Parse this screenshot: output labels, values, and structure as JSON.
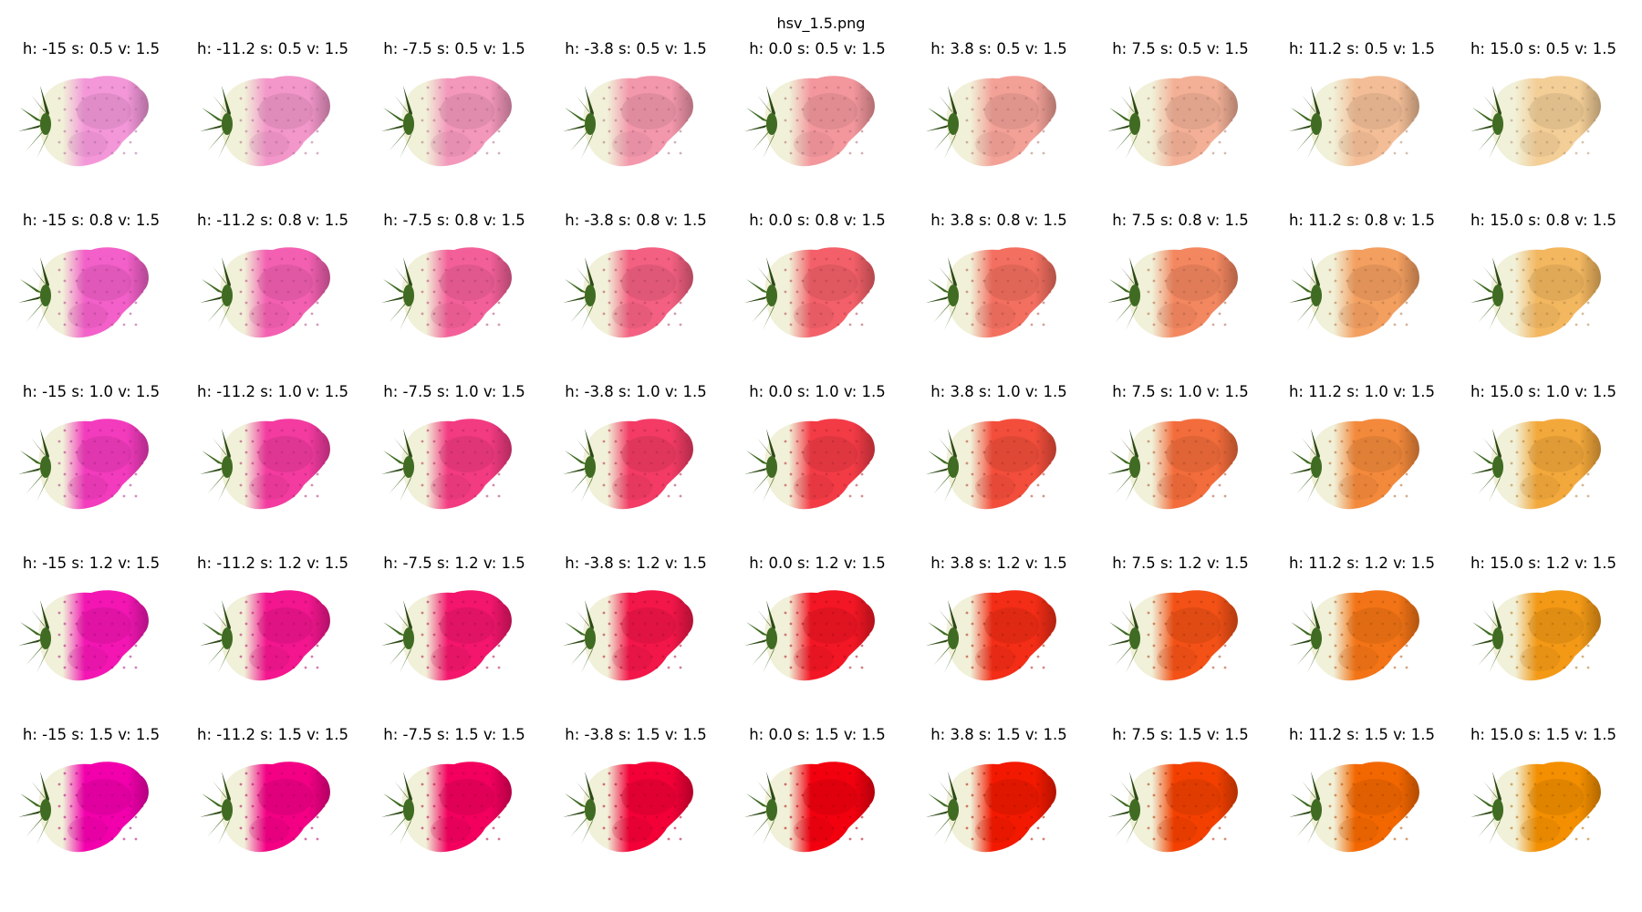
{
  "figure": {
    "title": "hsv_1.5.png",
    "rows": [
      [
        {
          "label": "h: -15 s: 0.5 v: 1.5",
          "h": -15,
          "s": 0.5,
          "v": 1.5
        },
        {
          "label": "h: -11.2 s: 0.5 v: 1.5",
          "h": -11.2,
          "s": 0.5,
          "v": 1.5
        },
        {
          "label": "h: -7.5 s: 0.5 v: 1.5",
          "h": -7.5,
          "s": 0.5,
          "v": 1.5
        },
        {
          "label": "h: -3.8 s: 0.5 v: 1.5",
          "h": -3.8,
          "s": 0.5,
          "v": 1.5
        },
        {
          "label": "h: 0.0 s: 0.5 v: 1.5",
          "h": 0.0,
          "s": 0.5,
          "v": 1.5
        },
        {
          "label": "h: 3.8 s: 0.5 v: 1.5",
          "h": 3.8,
          "s": 0.5,
          "v": 1.5
        },
        {
          "label": "h: 7.5 s: 0.5 v: 1.5",
          "h": 7.5,
          "s": 0.5,
          "v": 1.5
        },
        {
          "label": "h: 11.2 s: 0.5 v: 1.5",
          "h": 11.2,
          "s": 0.5,
          "v": 1.5
        },
        {
          "label": "h: 15.0 s: 0.5 v: 1.5",
          "h": 15.0,
          "s": 0.5,
          "v": 1.5
        }
      ],
      [
        {
          "label": "h: -15 s: 0.8 v: 1.5",
          "h": -15,
          "s": 0.8,
          "v": 1.5
        },
        {
          "label": "h: -11.2 s: 0.8 v: 1.5",
          "h": -11.2,
          "s": 0.8,
          "v": 1.5
        },
        {
          "label": "h: -7.5 s: 0.8 v: 1.5",
          "h": -7.5,
          "s": 0.8,
          "v": 1.5
        },
        {
          "label": "h: -3.8 s: 0.8 v: 1.5",
          "h": -3.8,
          "s": 0.8,
          "v": 1.5
        },
        {
          "label": "h: 0.0 s: 0.8 v: 1.5",
          "h": 0.0,
          "s": 0.8,
          "v": 1.5
        },
        {
          "label": "h: 3.8 s: 0.8 v: 1.5",
          "h": 3.8,
          "s": 0.8,
          "v": 1.5
        },
        {
          "label": "h: 7.5 s: 0.8 v: 1.5",
          "h": 7.5,
          "s": 0.8,
          "v": 1.5
        },
        {
          "label": "h: 11.2 s: 0.8 v: 1.5",
          "h": 11.2,
          "s": 0.8,
          "v": 1.5
        },
        {
          "label": "h: 15.0 s: 0.8 v: 1.5",
          "h": 15.0,
          "s": 0.8,
          "v": 1.5
        }
      ],
      [
        {
          "label": "h: -15 s: 1.0 v: 1.5",
          "h": -15,
          "s": 1.0,
          "v": 1.5
        },
        {
          "label": "h: -11.2 s: 1.0 v: 1.5",
          "h": -11.2,
          "s": 1.0,
          "v": 1.5
        },
        {
          "label": "h: -7.5 s: 1.0 v: 1.5",
          "h": -7.5,
          "s": 1.0,
          "v": 1.5
        },
        {
          "label": "h: -3.8 s: 1.0 v: 1.5",
          "h": -3.8,
          "s": 1.0,
          "v": 1.5
        },
        {
          "label": "h: 0.0 s: 1.0 v: 1.5",
          "h": 0.0,
          "s": 1.0,
          "v": 1.5
        },
        {
          "label": "h: 3.8 s: 1.0 v: 1.5",
          "h": 3.8,
          "s": 1.0,
          "v": 1.5
        },
        {
          "label": "h: 7.5 s: 1.0 v: 1.5",
          "h": 7.5,
          "s": 1.0,
          "v": 1.5
        },
        {
          "label": "h: 11.2 s: 1.0 v: 1.5",
          "h": 11.2,
          "s": 1.0,
          "v": 1.5
        },
        {
          "label": "h: 15.0 s: 1.0 v: 1.5",
          "h": 15.0,
          "s": 1.0,
          "v": 1.5
        }
      ],
      [
        {
          "label": "h: -15 s: 1.2 v: 1.5",
          "h": -15,
          "s": 1.2,
          "v": 1.5
        },
        {
          "label": "h: -11.2 s: 1.2 v: 1.5",
          "h": -11.2,
          "s": 1.2,
          "v": 1.5
        },
        {
          "label": "h: -7.5 s: 1.2 v: 1.5",
          "h": -7.5,
          "s": 1.2,
          "v": 1.5
        },
        {
          "label": "h: -3.8 s: 1.2 v: 1.5",
          "h": -3.8,
          "s": 1.2,
          "v": 1.5
        },
        {
          "label": "h: 0.0 s: 1.2 v: 1.5",
          "h": 0.0,
          "s": 1.2,
          "v": 1.5
        },
        {
          "label": "h: 3.8 s: 1.2 v: 1.5",
          "h": 3.8,
          "s": 1.2,
          "v": 1.5
        },
        {
          "label": "h: 7.5 s: 1.2 v: 1.5",
          "h": 7.5,
          "s": 1.2,
          "v": 1.5
        },
        {
          "label": "h: 11.2 s: 1.2 v: 1.5",
          "h": 11.2,
          "s": 1.2,
          "v": 1.5
        },
        {
          "label": "h: 15.0 s: 1.2 v: 1.5",
          "h": 15.0,
          "s": 1.2,
          "v": 1.5
        }
      ],
      [
        {
          "label": "h: -15 s: 1.5 v: 1.5",
          "h": -15,
          "s": 1.5,
          "v": 1.5
        },
        {
          "label": "h: -11.2 s: 1.5 v: 1.5",
          "h": -11.2,
          "s": 1.5,
          "v": 1.5
        },
        {
          "label": "h: -7.5 s: 1.5 v: 1.5",
          "h": -7.5,
          "s": 1.5,
          "v": 1.5
        },
        {
          "label": "h: -3.8 s: 1.5 v: 1.5",
          "h": -3.8,
          "s": 1.5,
          "v": 1.5
        },
        {
          "label": "h: 0.0 s: 1.5 v: 1.5",
          "h": 0.0,
          "s": 1.5,
          "v": 1.5
        },
        {
          "label": "h: 3.8 s: 1.5 v: 1.5",
          "h": 3.8,
          "s": 1.5,
          "v": 1.5
        },
        {
          "label": "h: 7.5 s: 1.5 v: 1.5",
          "h": 7.5,
          "s": 1.5,
          "v": 1.5
        },
        {
          "label": "h: 11.2 s: 1.5 v: 1.5",
          "h": 11.2,
          "s": 1.5,
          "v": 1.5
        },
        {
          "label": "h: 15.0 s: 1.5 v: 1.5",
          "h": 15.0,
          "s": 1.5,
          "v": 1.5
        }
      ]
    ]
  },
  "colors": {
    "background": "#ffffff",
    "text": "#000000",
    "base_berry": "#e8121f",
    "leaf": "#3f6b22",
    "leaf_dark": "#2c4a16",
    "shoulder": "#f1f0d8"
  }
}
